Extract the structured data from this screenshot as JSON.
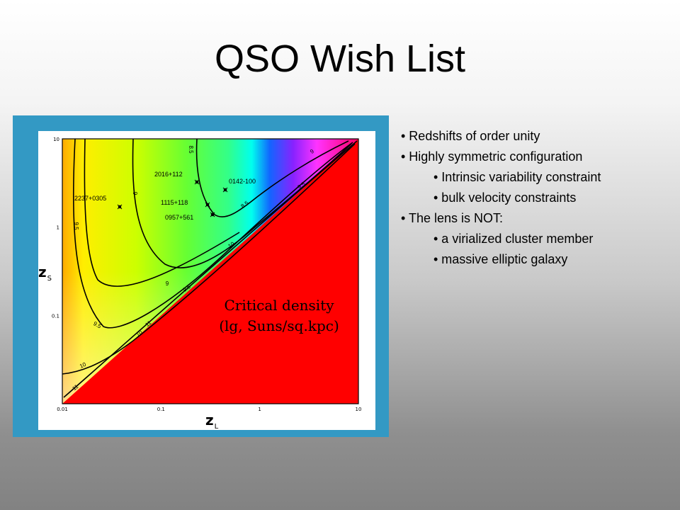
{
  "slide": {
    "title": "QSO Wish List",
    "bullets": [
      {
        "text": "• Redshifts of order unity",
        "level": 1
      },
      {
        "text": "• Highly symmetric configuration",
        "level": 1
      },
      {
        "text": "• Intrinsic variability constraint",
        "level": 2
      },
      {
        "text": "• bulk velocity constraints",
        "level": 2
      },
      {
        "text": "• The lens is NOT:",
        "level": 1
      },
      {
        "text": "• a virialized cluster member",
        "level": 2
      },
      {
        "text": "• massive elliptic galaxy",
        "level": 2
      }
    ]
  },
  "colors": {
    "frame": "#3399c4",
    "forbidden_region": "#ff0000",
    "plot_background": "#ffffff"
  },
  "chart_data": {
    "type": "heatmap",
    "xscale": "log",
    "yscale": "log",
    "xlim": [
      0.01,
      10
    ],
    "ylim": [
      0.01,
      10
    ],
    "xlabel": "z",
    "xlabel_sub": "L",
    "ylabel": "z",
    "ylabel_sub": "S",
    "xticks": [
      0.01,
      0.1,
      1,
      10
    ],
    "xtick_labels": [
      "0.01",
      "0.1",
      "1",
      "10"
    ],
    "yticks": [
      0.1,
      1,
      10
    ],
    "ytick_labels": [
      "0.1",
      "1",
      "10"
    ],
    "colorscale": "rainbow (orange at low z_L to violet near z_L = z_S)",
    "forbidden_region": "z_L ≥ z_S (red)",
    "annotation_lines": [
      "Critical density",
      "(lg, Suns/sq.kpc)"
    ],
    "contours": [
      {
        "level": "8.5",
        "labels": [
          "8.5",
          "8.5"
        ]
      },
      {
        "level": "9",
        "labels": [
          "9",
          "9",
          "9"
        ]
      },
      {
        "level": "9.5",
        "labels": [
          "9.5",
          "9.5",
          "9.5",
          "9.5"
        ]
      },
      {
        "level": "10",
        "labels": [
          "10",
          "10",
          "10"
        ]
      },
      {
        "level": "11",
        "labels": [
          "11",
          "11"
        ]
      }
    ],
    "points": [
      {
        "name": "2237+0305",
        "zl": 0.04,
        "zs": 1.69
      },
      {
        "name": "2016+112",
        "zl": 1.0,
        "zs": 3.27
      },
      {
        "name": "0142-100",
        "zl": 0.49,
        "zs": 2.72
      },
      {
        "name": "1115+118",
        "zl": 0.31,
        "zs": 1.72
      },
      {
        "name": "0957+561",
        "zl": 0.36,
        "zs": 1.41
      }
    ]
  }
}
